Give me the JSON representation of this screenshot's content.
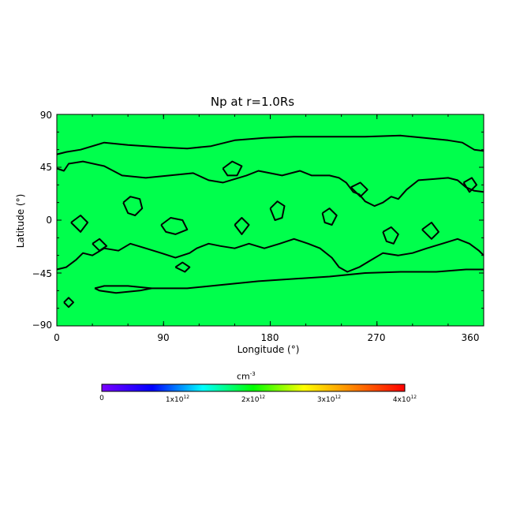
{
  "chart_data": {
    "type": "heatmap",
    "title": "Np at r=1.0Rs",
    "xlabel": "Longitude (°)",
    "ylabel": "Latitude (°)",
    "xlim": [
      0,
      360
    ],
    "ylim": [
      -90,
      90
    ],
    "x_ticks": [
      "0",
      "90",
      "180",
      "270",
      "360"
    ],
    "y_ticks": [
      "90",
      "45",
      "0",
      "−45",
      "−90"
    ],
    "field_color": "#00ff4c",
    "contour_color": "#000000",
    "colorbar": {
      "title": "cm",
      "title_exponent": "-3",
      "range": [
        0,
        4000000000000.0
      ],
      "ticks": [
        {
          "base": "0",
          "exp": ""
        },
        {
          "base": "1x10",
          "exp": "12"
        },
        {
          "base": "2x10",
          "exp": "12"
        },
        {
          "base": "3x10",
          "exp": "12"
        },
        {
          "base": "4x10",
          "exp": "12"
        }
      ],
      "colors": [
        "#7a00ff",
        "#0000ff",
        "#00ffff",
        "#00ff00",
        "#ffff00",
        "#ff8000",
        "#ff0000"
      ]
    },
    "contours": [
      [
        [
          0,
          56
        ],
        [
          8,
          58
        ],
        [
          20,
          60
        ],
        [
          40,
          66
        ],
        [
          60,
          64
        ],
        [
          90,
          62
        ],
        [
          110,
          61
        ],
        [
          130,
          63
        ],
        [
          150,
          68
        ],
        [
          175,
          70
        ],
        [
          200,
          71
        ],
        [
          230,
          71
        ],
        [
          260,
          71
        ],
        [
          290,
          72
        ],
        [
          310,
          70
        ],
        [
          330,
          68
        ],
        [
          342,
          66
        ],
        [
          352,
          60
        ],
        [
          360,
          59
        ]
      ],
      [
        [
          0,
          44
        ],
        [
          6,
          42
        ],
        [
          10,
          48
        ],
        [
          22,
          50
        ],
        [
          40,
          46
        ],
        [
          55,
          38
        ],
        [
          75,
          36
        ],
        [
          95,
          38
        ],
        [
          115,
          40
        ],
        [
          128,
          34
        ],
        [
          140,
          32
        ],
        [
          160,
          38
        ],
        [
          170,
          42
        ],
        [
          190,
          38
        ],
        [
          205,
          42
        ],
        [
          215,
          38
        ],
        [
          230,
          38
        ],
        [
          238,
          36
        ],
        [
          244,
          32
        ],
        [
          250,
          24
        ],
        [
          255,
          22
        ],
        [
          260,
          16
        ],
        [
          268,
          12
        ],
        [
          275,
          15
        ],
        [
          282,
          20
        ],
        [
          288,
          18
        ],
        [
          295,
          26
        ],
        [
          305,
          34
        ],
        [
          318,
          35
        ],
        [
          330,
          36
        ],
        [
          338,
          34
        ],
        [
          345,
          28
        ],
        [
          352,
          25
        ],
        [
          360,
          24
        ]
      ],
      [
        [
          0,
          -42
        ],
        [
          8,
          -40
        ],
        [
          16,
          -34
        ],
        [
          22,
          -28
        ],
        [
          30,
          -30
        ],
        [
          40,
          -24
        ],
        [
          52,
          -26
        ],
        [
          62,
          -20
        ],
        [
          75,
          -24
        ],
        [
          88,
          -28
        ],
        [
          100,
          -32
        ],
        [
          112,
          -28
        ],
        [
          118,
          -24
        ],
        [
          128,
          -20
        ],
        [
          138,
          -22
        ],
        [
          150,
          -24
        ],
        [
          162,
          -20
        ],
        [
          175,
          -24
        ],
        [
          188,
          -20
        ],
        [
          200,
          -16
        ],
        [
          212,
          -20
        ],
        [
          222,
          -24
        ],
        [
          232,
          -32
        ],
        [
          238,
          -40
        ],
        [
          245,
          -44
        ],
        [
          255,
          -40
        ],
        [
          265,
          -34
        ],
        [
          275,
          -28
        ],
        [
          288,
          -30
        ],
        [
          300,
          -28
        ],
        [
          312,
          -24
        ],
        [
          325,
          -20
        ],
        [
          338,
          -16
        ],
        [
          348,
          -20
        ],
        [
          356,
          -26
        ],
        [
          360,
          -30
        ]
      ],
      [
        [
          32,
          -58
        ],
        [
          40,
          -56
        ],
        [
          60,
          -56
        ],
        [
          80,
          -58
        ],
        [
          110,
          -58
        ],
        [
          140,
          -55
        ],
        [
          170,
          -52
        ],
        [
          200,
          -50
        ],
        [
          230,
          -48
        ],
        [
          260,
          -45
        ],
        [
          290,
          -44
        ],
        [
          320,
          -44
        ],
        [
          345,
          -42
        ],
        [
          360,
          -42
        ]
      ],
      [
        [
          32,
          -58
        ],
        [
          36,
          -60
        ],
        [
          50,
          -62
        ],
        [
          70,
          -60
        ],
        [
          80,
          -58
        ]
      ],
      [
        [
          56,
          15
        ],
        [
          62,
          20
        ],
        [
          70,
          18
        ],
        [
          72,
          10
        ],
        [
          66,
          4
        ],
        [
          60,
          6
        ],
        [
          56,
          15
        ]
      ],
      [
        [
          88,
          -4
        ],
        [
          96,
          2
        ],
        [
          106,
          0
        ],
        [
          110,
          -8
        ],
        [
          100,
          -12
        ],
        [
          92,
          -10
        ],
        [
          88,
          -4
        ]
      ],
      [
        [
          180,
          10
        ],
        [
          186,
          16
        ],
        [
          192,
          12
        ],
        [
          190,
          2
        ],
        [
          184,
          0
        ],
        [
          180,
          10
        ]
      ],
      [
        [
          224,
          6
        ],
        [
          230,
          10
        ],
        [
          236,
          4
        ],
        [
          232,
          -4
        ],
        [
          226,
          -2
        ],
        [
          224,
          6
        ]
      ],
      [
        [
          275,
          -10
        ],
        [
          282,
          -6
        ],
        [
          288,
          -12
        ],
        [
          284,
          -20
        ],
        [
          278,
          -18
        ],
        [
          275,
          -10
        ]
      ],
      [
        [
          100,
          -40
        ],
        [
          106,
          -36
        ],
        [
          112,
          -40
        ],
        [
          108,
          -44
        ],
        [
          100,
          -40
        ]
      ],
      [
        [
          30,
          -20
        ],
        [
          36,
          -16
        ],
        [
          42,
          -22
        ],
        [
          36,
          -26
        ],
        [
          30,
          -20
        ]
      ],
      [
        [
          308,
          -8
        ],
        [
          316,
          -2
        ],
        [
          322,
          -10
        ],
        [
          316,
          -16
        ],
        [
          308,
          -8
        ]
      ],
      [
        [
          140,
          44
        ],
        [
          148,
          50
        ],
        [
          156,
          46
        ],
        [
          152,
          38
        ],
        [
          144,
          38
        ],
        [
          140,
          44
        ]
      ],
      [
        [
          343,
          32
        ],
        [
          350,
          36
        ],
        [
          354,
          30
        ],
        [
          348,
          24
        ],
        [
          343,
          32
        ]
      ],
      [
        [
          6,
          -70
        ],
        [
          10,
          -66
        ],
        [
          14,
          -70
        ],
        [
          10,
          -74
        ],
        [
          6,
          -70
        ]
      ],
      [
        [
          12,
          -2
        ],
        [
          20,
          4
        ],
        [
          26,
          -2
        ],
        [
          20,
          -10
        ],
        [
          12,
          -2
        ]
      ],
      [
        [
          150,
          -4
        ],
        [
          156,
          2
        ],
        [
          162,
          -4
        ],
        [
          156,
          -12
        ],
        [
          150,
          -4
        ]
      ],
      [
        [
          248,
          28
        ],
        [
          256,
          32
        ],
        [
          262,
          26
        ],
        [
          256,
          20
        ],
        [
          248,
          28
        ]
      ]
    ]
  }
}
